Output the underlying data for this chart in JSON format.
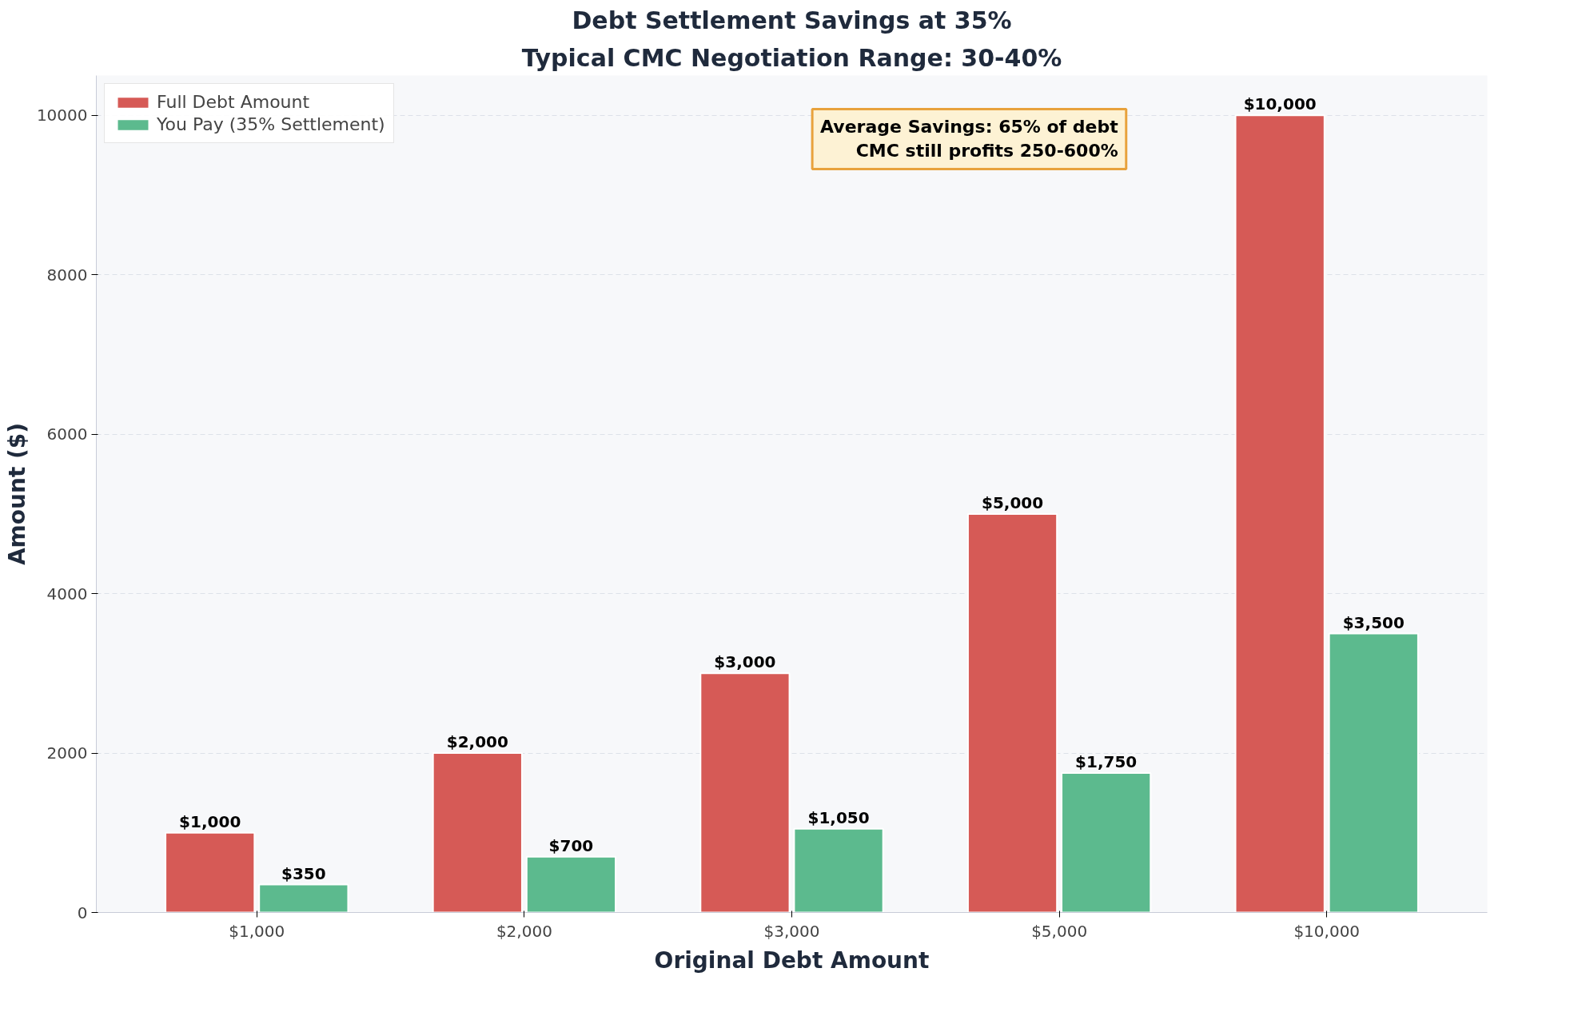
{
  "chart_data": {
    "type": "bar",
    "title": "Debt Settlement Savings at 35%",
    "subtitle": "Typical CMC Negotiation Range: 30-40%",
    "xlabel": "Original Debt Amount",
    "ylabel": "Amount ($)",
    "categories": [
      "$1,000",
      "$2,000",
      "$3,000",
      "$5,000",
      "$10,000"
    ],
    "series": [
      {
        "name": "Full Debt Amount",
        "color": "#d65a56",
        "values": [
          1000,
          2000,
          3000,
          5000,
          10000
        ],
        "value_labels": [
          "$1,000",
          "$2,000",
          "$3,000",
          "$5,000",
          "$10,000"
        ]
      },
      {
        "name": "You Pay (35% Settlement)",
        "color": "#5cba8e",
        "values": [
          350,
          700,
          1050,
          1750,
          3500
        ],
        "value_labels": [
          "$350",
          "$700",
          "$1,050",
          "$1,750",
          "$3,500"
        ]
      }
    ],
    "ylim": [
      0,
      10500
    ],
    "yticks": [
      0,
      2000,
      4000,
      6000,
      8000,
      10000
    ],
    "grid": "y",
    "legend": "top left",
    "annotations": [
      "Average Savings: 65% of debt\nCMC still profits 250-600%"
    ]
  }
}
